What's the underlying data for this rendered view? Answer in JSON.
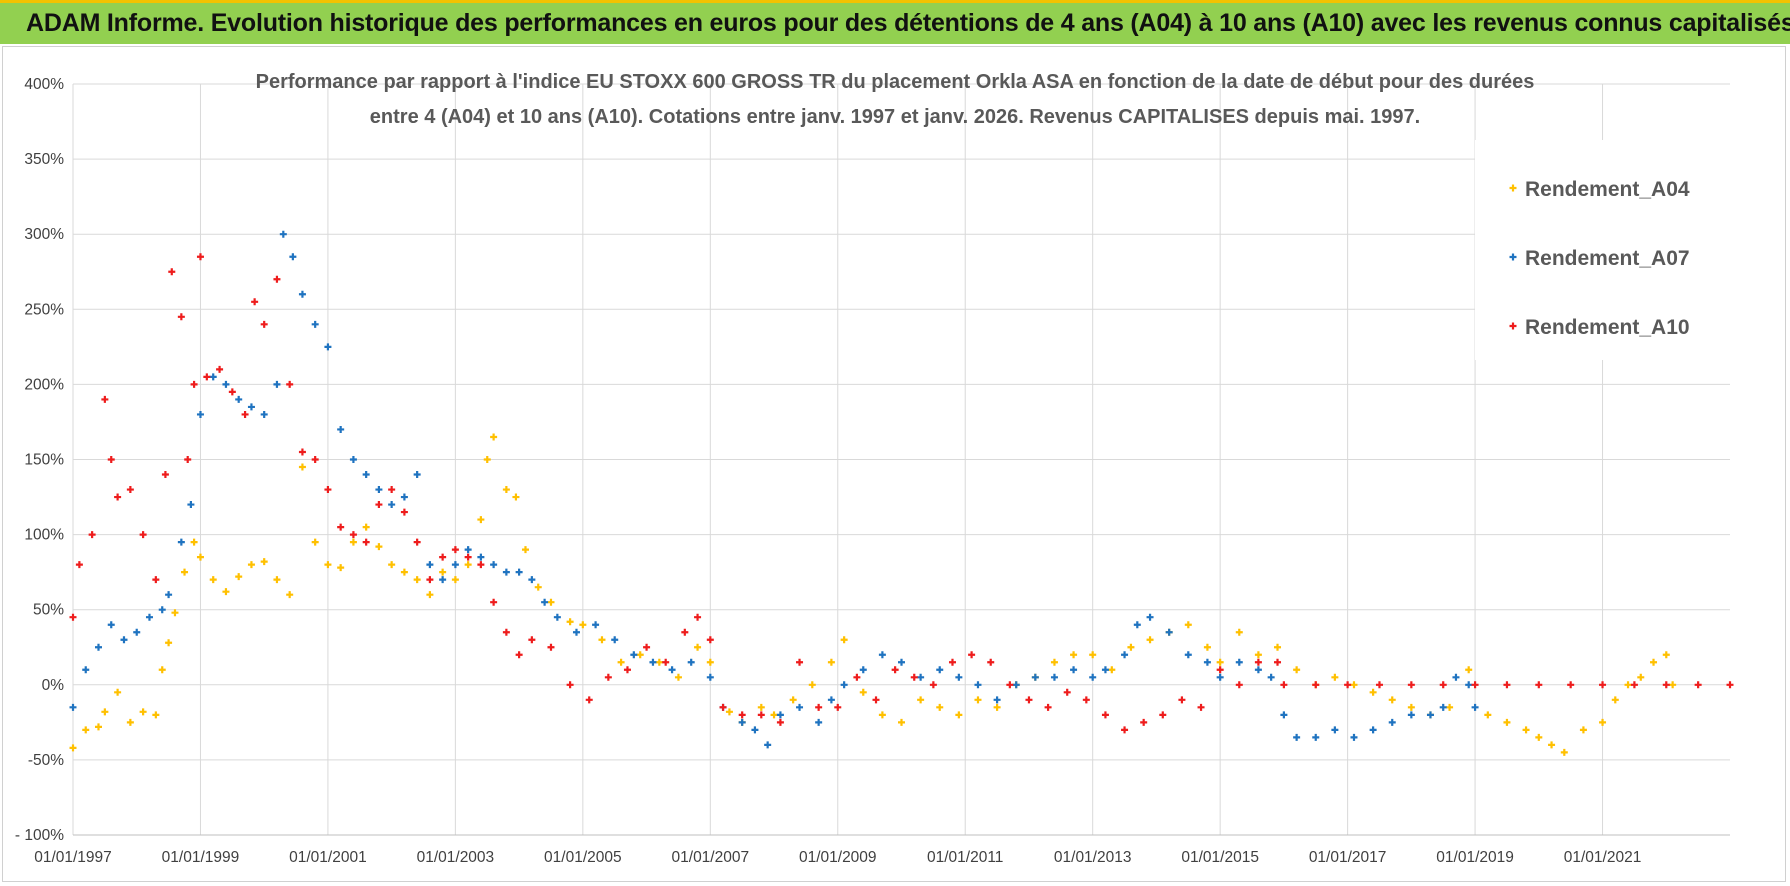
{
  "banner": {
    "title": "ADAM Informe. Evolution historique des performances en euros pour des détentions de 4 ans (A04) à 10 ans (A10) avec les revenus connus capitalisés"
  },
  "colors": {
    "banner_bg": "#92d050",
    "banner_border": "#f2c200",
    "A04": "#ffc000",
    "A07": "#1f73c0",
    "A10": "#ee1c1c"
  },
  "chart_data": {
    "type": "scatter",
    "title_lines": [
      "Performance par rapport à l'indice EU STOXX 600 GROSS TR  du placement Orkla ASA en fonction de la date de début pour des durées",
      "entre 4 (A04) et 10 ans (A10).  Cotations entre janv. 1997 et janv. 2026. Revenus CAPITALISES depuis mai. 1997."
    ],
    "xlabel": "",
    "ylabel": "",
    "x_unit": "year",
    "xlim": [
      1997.0,
      2023.0
    ],
    "ylim": [
      -100,
      400
    ],
    "y_ticks": [
      -100,
      -50,
      0,
      50,
      100,
      150,
      200,
      250,
      300,
      350,
      400
    ],
    "y_tick_labels": [
      "- 100%",
      "-50%",
      "0%",
      "50%",
      "100%",
      "150%",
      "200%",
      "250%",
      "300%",
      "350%",
      "400%"
    ],
    "x_ticks": [
      1997,
      1999,
      2001,
      2003,
      2005,
      2007,
      2009,
      2011,
      2013,
      2015,
      2017,
      2019,
      2021
    ],
    "x_tick_labels": [
      "01/01/1997",
      "01/01/1999",
      "01/01/2001",
      "01/01/2003",
      "01/01/2005",
      "01/01/2007",
      "01/01/2009",
      "01/01/2011",
      "01/01/2013",
      "01/01/2015",
      "01/01/2017",
      "01/01/2019",
      "01/01/2021"
    ],
    "grid": true,
    "legend_position": "top-right",
    "marker": "+",
    "series": [
      {
        "name": "Rendement_A04",
        "color": "#ffc000",
        "x": [
          1997.0,
          1997.2,
          1997.4,
          1997.5,
          1997.7,
          1997.9,
          1998.1,
          1998.3,
          1998.4,
          1998.5,
          1998.6,
          1998.75,
          1998.9,
          1999.0,
          1999.2,
          1999.4,
          1999.6,
          1999.8,
          2000.0,
          2000.2,
          2000.4,
          2000.6,
          2000.8,
          2001.0,
          2001.2,
          2001.4,
          2001.6,
          2001.8,
          2002.0,
          2002.2,
          2002.4,
          2002.6,
          2002.8,
          2003.0,
          2003.2,
          2003.4,
          2003.5,
          2003.6,
          2003.8,
          2003.95,
          2004.1,
          2004.3,
          2004.5,
          2004.8,
          2005.0,
          2005.3,
          2005.6,
          2005.9,
          2006.2,
          2006.5,
          2006.8,
          2007.0,
          2007.3,
          2007.5,
          2007.8,
          2008.0,
          2008.3,
          2008.6,
          2008.9,
          2009.1,
          2009.4,
          2009.7,
          2010.0,
          2010.3,
          2010.6,
          2010.9,
          2011.2,
          2011.5,
          2011.8,
          2012.1,
          2012.4,
          2012.7,
          2013.0,
          2013.3,
          2013.6,
          2013.9,
          2014.2,
          2014.5,
          2014.8,
          2015.0,
          2015.3,
          2015.6,
          2015.9,
          2016.2,
          2016.5,
          2016.8,
          2017.1,
          2017.4,
          2017.7,
          2018.0,
          2018.3,
          2018.6,
          2018.9,
          2019.2,
          2019.5,
          2019.8,
          2020.0,
          2020.2,
          2020.4,
          2020.7,
          2021.0,
          2021.2,
          2021.4,
          2021.6,
          2021.8,
          2022.0,
          2022.1
        ],
        "y": [
          -42,
          -30,
          -28,
          -18,
          -5,
          -25,
          -18,
          -20,
          10,
          28,
          48,
          75,
          95,
          85,
          70,
          62,
          72,
          80,
          82,
          70,
          60,
          145,
          95,
          80,
          78,
          95,
          105,
          92,
          80,
          75,
          70,
          60,
          75,
          70,
          80,
          110,
          150,
          165,
          130,
          125,
          90,
          65,
          55,
          42,
          40,
          30,
          15,
          20,
          15,
          5,
          25,
          15,
          -18,
          -25,
          -15,
          -20,
          -10,
          0,
          15,
          30,
          -5,
          -20,
          -25,
          -10,
          -15,
          -20,
          -10,
          -15,
          0,
          5,
          15,
          20,
          20,
          10,
          25,
          30,
          35,
          40,
          25,
          15,
          35,
          20,
          25,
          10,
          0,
          5,
          0,
          -5,
          -10,
          -15,
          -20,
          -15,
          10,
          -20,
          -25,
          -30,
          -35,
          -40,
          -45,
          -30,
          -25,
          -10,
          0,
          5,
          15,
          20,
          0
        ]
      },
      {
        "name": "Rendement_A07",
        "color": "#1f73c0",
        "x": [
          1997.0,
          1997.2,
          1997.4,
          1997.6,
          1997.8,
          1998.0,
          1998.2,
          1998.4,
          1998.5,
          1998.7,
          1998.85,
          1999.0,
          1999.2,
          1999.4,
          1999.6,
          1999.8,
          2000.0,
          2000.2,
          2000.3,
          2000.45,
          2000.6,
          2000.8,
          2001.0,
          2001.2,
          2001.4,
          2001.6,
          2001.8,
          2002.0,
          2002.2,
          2002.4,
          2002.6,
          2002.8,
          2003.0,
          2003.2,
          2003.4,
          2003.6,
          2003.8,
          2004.0,
          2004.2,
          2004.4,
          2004.6,
          2004.9,
          2005.2,
          2005.5,
          2005.8,
          2006.1,
          2006.4,
          2006.7,
          2007.0,
          2007.2,
          2007.5,
          2007.7,
          2007.9,
          2008.1,
          2008.4,
          2008.7,
          2008.9,
          2009.1,
          2009.4,
          2009.7,
          2010.0,
          2010.3,
          2010.6,
          2010.9,
          2011.2,
          2011.5,
          2011.8,
          2012.1,
          2012.4,
          2012.7,
          2013.0,
          2013.2,
          2013.5,
          2013.7,
          2013.9,
          2014.2,
          2014.5,
          2014.8,
          2015.0,
          2015.3,
          2015.6,
          2015.8,
          2016.0,
          2016.2,
          2016.5,
          2016.8,
          2017.1,
          2017.4,
          2017.7,
          2018.0,
          2018.3,
          2018.5,
          2018.7,
          2018.9,
          2019.0
        ],
        "y": [
          -15,
          10,
          25,
          40,
          30,
          35,
          45,
          50,
          60,
          95,
          120,
          180,
          205,
          200,
          190,
          185,
          180,
          200,
          300,
          285,
          260,
          240,
          225,
          170,
          150,
          140,
          130,
          120,
          125,
          140,
          80,
          70,
          80,
          90,
          85,
          80,
          75,
          75,
          70,
          55,
          45,
          35,
          40,
          30,
          20,
          15,
          10,
          15,
          5,
          -15,
          -25,
          -30,
          -40,
          -20,
          -15,
          -25,
          -10,
          0,
          10,
          20,
          15,
          5,
          10,
          5,
          0,
          -10,
          0,
          5,
          5,
          10,
          5,
          10,
          20,
          40,
          45,
          35,
          20,
          15,
          5,
          15,
          10,
          5,
          -20,
          -35,
          -35,
          -30,
          -35,
          -30,
          -25,
          -20,
          -20,
          -15,
          5,
          0,
          -15
        ]
      },
      {
        "name": "Rendement_A10",
        "color": "#ee1c1c",
        "x": [
          1997.0,
          1997.1,
          1997.3,
          1997.5,
          1997.6,
          1997.7,
          1997.9,
          1998.1,
          1998.3,
          1998.45,
          1998.55,
          1998.7,
          1998.8,
          1998.9,
          1999.0,
          1999.1,
          1999.3,
          1999.5,
          1999.7,
          1999.85,
          2000.0,
          2000.2,
          2000.4,
          2000.6,
          2000.8,
          2001.0,
          2001.2,
          2001.4,
          2001.6,
          2001.8,
          2002.0,
          2002.2,
          2002.4,
          2002.6,
          2002.8,
          2003.0,
          2003.2,
          2003.4,
          2003.6,
          2003.8,
          2004.0,
          2004.2,
          2004.5,
          2004.8,
          2005.1,
          2005.4,
          2005.7,
          2006.0,
          2006.3,
          2006.6,
          2006.8,
          2007.0,
          2007.2,
          2007.5,
          2007.8,
          2008.1,
          2008.4,
          2008.7,
          2009.0,
          2009.3,
          2009.6,
          2009.9,
          2010.2,
          2010.5,
          2010.8,
          2011.1,
          2011.4,
          2011.7,
          2012.0,
          2012.3,
          2012.6,
          2012.9,
          2013.2,
          2013.5,
          2013.8,
          2014.1,
          2014.4,
          2014.7,
          2015.0,
          2015.3,
          2015.6,
          2015.9,
          2016.0,
          2016.5,
          2017.0,
          2017.5,
          2018.0,
          2018.5,
          2019.0,
          2019.5,
          2020.0,
          2020.5,
          2021.0,
          2021.5,
          2022.0,
          2022.5,
          2023.0
        ],
        "y": [
          45,
          80,
          100,
          190,
          150,
          125,
          130,
          100,
          70,
          140,
          275,
          245,
          150,
          200,
          285,
          205,
          210,
          195,
          180,
          255,
          240,
          270,
          200,
          155,
          150,
          130,
          105,
          100,
          95,
          120,
          130,
          115,
          95,
          70,
          85,
          90,
          85,
          80,
          55,
          35,
          20,
          30,
          25,
          0,
          -10,
          5,
          10,
          25,
          15,
          35,
          45,
          30,
          -15,
          -20,
          -20,
          -25,
          15,
          -15,
          -15,
          5,
          -10,
          10,
          5,
          0,
          15,
          20,
          15,
          0,
          -10,
          -15,
          -5,
          -10,
          -20,
          -30,
          -25,
          -20,
          -10,
          -15,
          10,
          0,
          15,
          15,
          0,
          0,
          0,
          0,
          0,
          0,
          0,
          0,
          0,
          0,
          0,
          0,
          0,
          0,
          0
        ]
      }
    ]
  }
}
